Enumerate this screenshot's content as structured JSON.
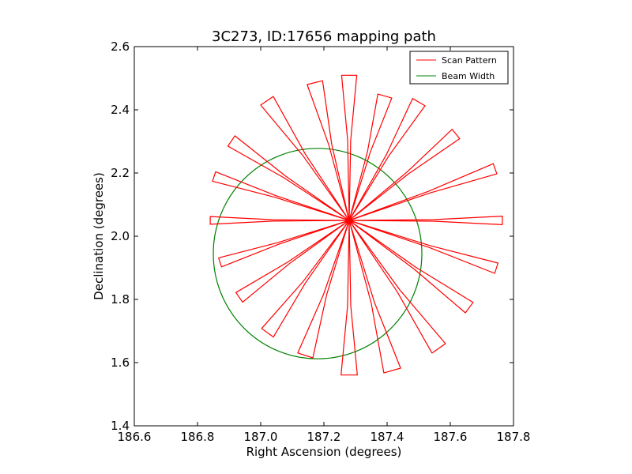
{
  "chart_data": {
    "type": "line",
    "title": "3C273, ID:17656 mapping path",
    "xlabel": "Right Ascension (degrees)",
    "ylabel": "Declination (degrees)",
    "xlim": [
      186.6,
      187.8
    ],
    "ylim": [
      1.4,
      2.6
    ],
    "xticks": [
      "186.6",
      "186.8",
      "187.0",
      "187.2",
      "187.4",
      "187.6",
      "187.8"
    ],
    "yticks": [
      "1.4",
      "1.6",
      "1.8",
      "2.0",
      "2.2",
      "2.4",
      "2.6"
    ],
    "grid": false,
    "legend_position": "top-right",
    "series": [
      {
        "name": "Scan Pattern",
        "color": "#ff0000",
        "pattern": {
          "center": [
            187.28,
            2.05
          ],
          "petals": [
            {
              "angle_deg": 0,
              "reach": 0.485,
              "half_width_deg": 1.6
            },
            {
              "angle_deg": 19.5,
              "reach": 0.49,
              "half_width_deg": 2.0
            },
            {
              "angle_deg": 39,
              "reach": 0.435,
              "half_width_deg": 2.5
            },
            {
              "angle_deg": 59.5,
              "reach": 0.435,
              "half_width_deg": 3.0
            },
            {
              "angle_deg": 74,
              "reach": 0.41,
              "half_width_deg": 3.2
            },
            {
              "angle_deg": 90,
              "reach": 0.46,
              "half_width_deg": 3.0
            },
            {
              "angle_deg": 104,
              "reach": 0.45,
              "half_width_deg": 3.2
            },
            {
              "angle_deg": 124.5,
              "reach": 0.46,
              "half_width_deg": 3.0
            },
            {
              "angle_deg": 146,
              "reach": 0.45,
              "half_width_deg": 2.5
            },
            {
              "angle_deg": 162,
              "reach": 0.45,
              "half_width_deg": 2.0
            },
            {
              "angle_deg": 180,
              "reach": 0.44,
              "half_width_deg": 1.6
            },
            {
              "angle_deg": 198,
              "reach": 0.43,
              "half_width_deg": 2.0
            },
            {
              "angle_deg": 215,
              "reach": 0.425,
              "half_width_deg": 2.5
            },
            {
              "angle_deg": 234,
              "reach": 0.44,
              "half_width_deg": 3.0
            },
            {
              "angle_deg": 252,
              "reach": 0.45,
              "half_width_deg": 3.2
            },
            {
              "angle_deg": 270,
              "reach": 0.49,
              "half_width_deg": 3.0
            },
            {
              "angle_deg": 286,
              "reach": 0.495,
              "half_width_deg": 3.2
            },
            {
              "angle_deg": 305,
              "reach": 0.495,
              "half_width_deg": 3.0
            },
            {
              "angle_deg": 324,
              "reach": 0.47,
              "half_width_deg": 2.5
            },
            {
              "angle_deg": 342,
              "reach": 0.49,
              "half_width_deg": 2.0
            }
          ]
        }
      },
      {
        "name": "Beam Width",
        "color": "#008000",
        "circle": {
          "center": [
            187.18,
            1.945
          ],
          "radius_ra": 0.33,
          "radius_dec": 0.333
        }
      }
    ]
  }
}
